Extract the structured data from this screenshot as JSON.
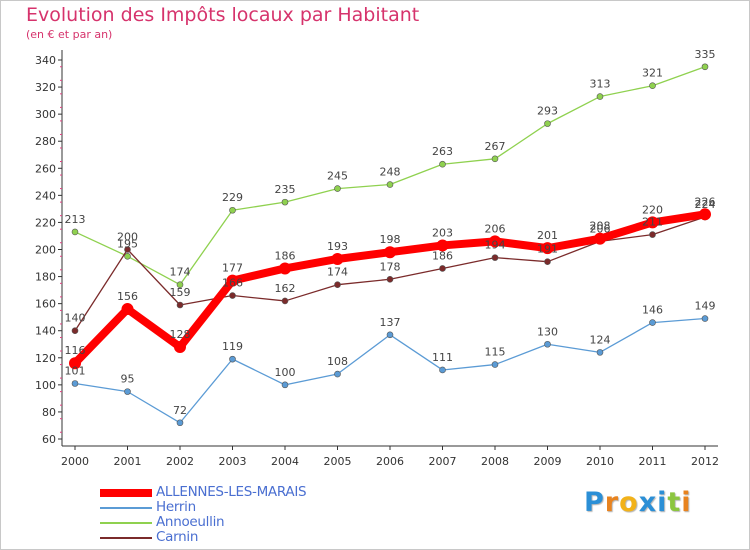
{
  "title": "Evolution des Impôts locaux par Habitant",
  "subtitle": "(en € et par an)",
  "logo": {
    "text": "Proxiti",
    "letters": [
      "P",
      "r",
      "o",
      "x",
      "i",
      "t",
      "i"
    ],
    "colors": [
      "#2b8fd6",
      "#e8831f",
      "#f2b21a",
      "#2b8fd6",
      "#2b8fd6",
      "#8cc63f",
      "#e8831f"
    ]
  },
  "chart_data": {
    "type": "line",
    "x": [
      "2000",
      "2001",
      "2002",
      "2003",
      "2004",
      "2005",
      "2006",
      "2007",
      "2008",
      "2009",
      "2010",
      "2011",
      "2012"
    ],
    "ylim": [
      60,
      340
    ],
    "yticks": [
      60,
      80,
      100,
      120,
      140,
      160,
      180,
      200,
      220,
      240,
      260,
      280,
      300,
      320,
      340
    ],
    "grid": false,
    "legend_position": "bottom-left",
    "series": [
      {
        "name": "Annoeullin",
        "color": "#8fd14f",
        "values": [
          213,
          195,
          174,
          229,
          235,
          245,
          248,
          263,
          267,
          293,
          313,
          321,
          335
        ],
        "labels": [
          "213",
          "195",
          "174",
          "229",
          "235",
          "245",
          "248",
          "263",
          "267",
          "293",
          "313",
          "321",
          "335"
        ]
      },
      {
        "name": "Herrin",
        "color": "#5b9bd5",
        "values": [
          101,
          95,
          72,
          119,
          100,
          108,
          137,
          111,
          115,
          130,
          124,
          146,
          149
        ],
        "labels": [
          "101",
          "95",
          "72",
          "119",
          "100",
          "108",
          "137",
          "111",
          "115",
          "130",
          "124",
          "146",
          "149"
        ]
      },
      {
        "name": "Carnin",
        "color": "#7b2b2b",
        "values": [
          140,
          200,
          159,
          166,
          162,
          174,
          178,
          186,
          194,
          191,
          206,
          211,
          224
        ],
        "labels": [
          "140",
          "200",
          "159",
          "166",
          "162",
          "174",
          "178",
          "186",
          "194",
          "191",
          "206",
          "211",
          "224"
        ]
      },
      {
        "name": "ALLENNES-LES-MARAIS",
        "color": "#ff0000",
        "values": [
          116,
          156,
          128,
          177,
          186,
          193,
          198,
          203,
          206,
          201,
          208,
          220,
          226
        ],
        "labels": [
          "116",
          "156",
          "128",
          "177",
          "186",
          "193",
          "198",
          "203",
          "206",
          "201",
          "208",
          "220",
          "226"
        ]
      }
    ]
  },
  "legend": [
    {
      "name": "ALLENNES-LES-MARAIS",
      "color": "#ff0000",
      "label_color": "#4a6fd1",
      "thick": true
    },
    {
      "name": "Herrin",
      "color": "#5b9bd5",
      "label_color": "#4a6fd1",
      "thick": false
    },
    {
      "name": "Annoeullin",
      "color": "#8fd14f",
      "label_color": "#4a6fd1",
      "thick": false
    },
    {
      "name": "Carnin",
      "color": "#7b2b2b",
      "label_color": "#4a6fd1",
      "thick": false
    }
  ]
}
